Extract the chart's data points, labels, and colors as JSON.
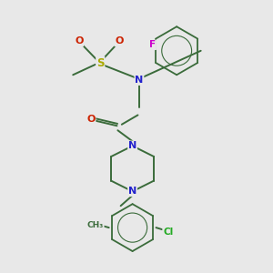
{
  "background_color": "#e8e8e8",
  "bond_color": "#3a6b3a",
  "atom_colors": {
    "N": "#2222cc",
    "O": "#cc2200",
    "S": "#aaaa00",
    "F": "#cc00cc",
    "Cl": "#22aa22",
    "C": "#3a6b3a"
  },
  "figsize": [
    3.0,
    3.0
  ],
  "dpi": 100
}
